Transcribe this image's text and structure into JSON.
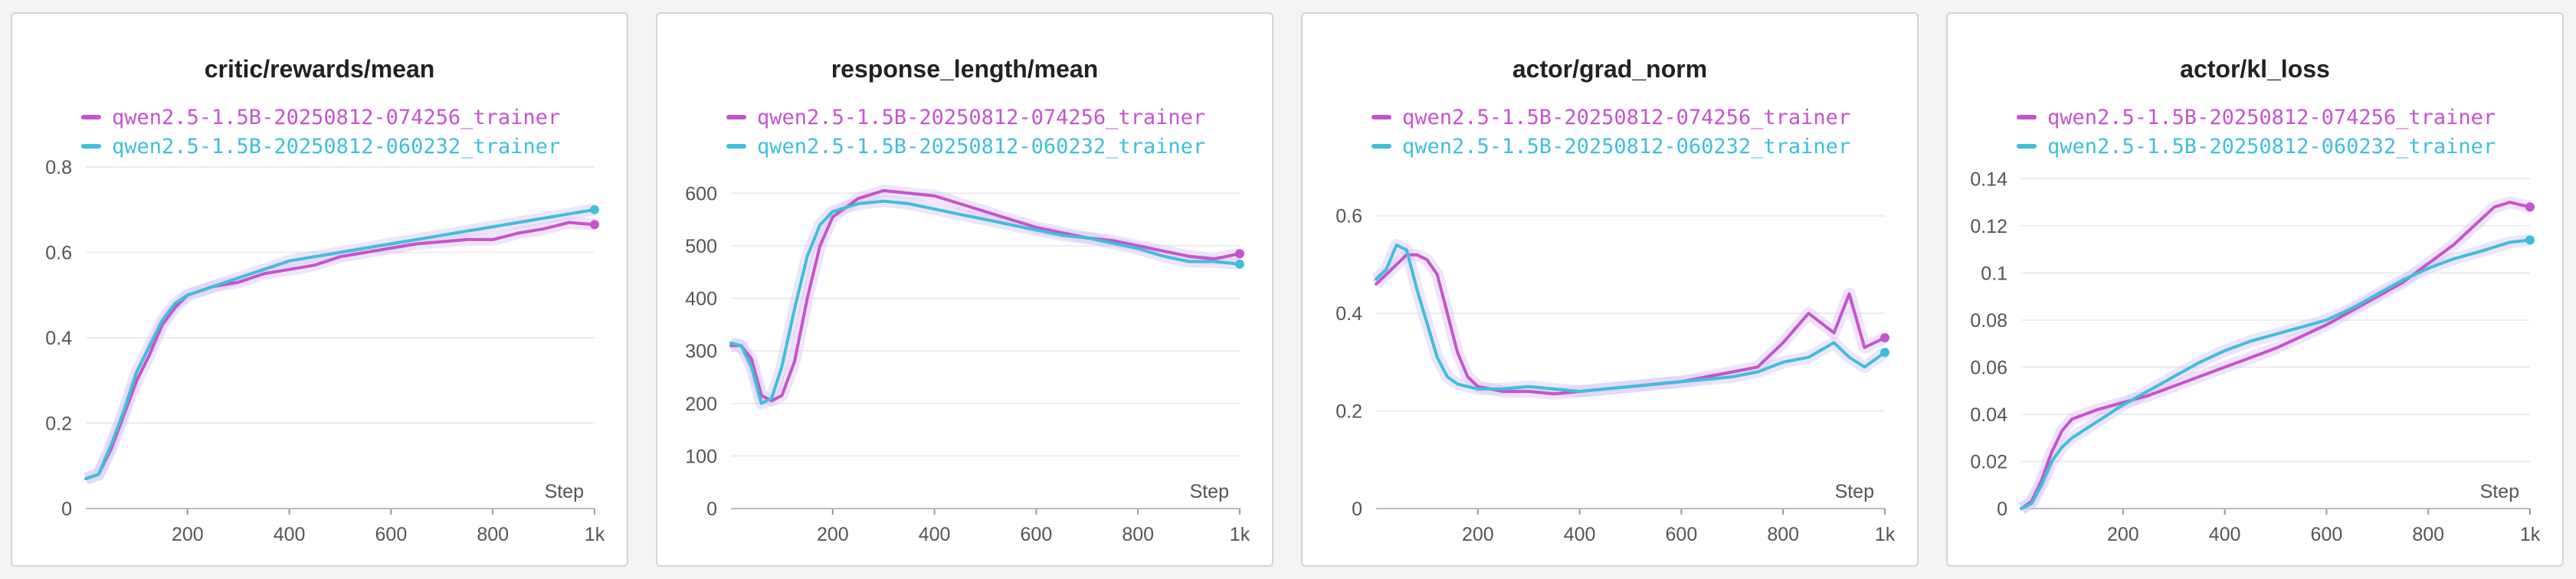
{
  "colors": {
    "magenta": "#c653cf",
    "cyan": "#3dbfdc",
    "grid": "#ececec",
    "shade": "#d9c6f2"
  },
  "series_names": [
    "qwen2.5-1.5B-20250812-074256_trainer",
    "qwen2.5-1.5B-20250812-060232_trainer"
  ],
  "chart_data": [
    {
      "type": "line",
      "title": "critic/rewards/mean",
      "xlabel": "Step",
      "xlim": [
        0,
        1000
      ],
      "ylim": [
        0,
        0.8
      ],
      "x_ticks": [
        200,
        400,
        600,
        800,
        1000
      ],
      "x_tick_labels": [
        "200",
        "400",
        "600",
        "800",
        "1k"
      ],
      "y_ticks": [
        0,
        0.2,
        0.4,
        0.6,
        0.8
      ],
      "y_tick_labels": [
        "0",
        "0.2",
        "0.4",
        "0.6",
        "0.8"
      ],
      "series": [
        {
          "name": "qwen2.5-1.5B-20250812-074256_trainer",
          "color": "#c653cf",
          "x": [
            0,
            25,
            50,
            75,
            100,
            125,
            150,
            175,
            200,
            250,
            300,
            350,
            400,
            450,
            500,
            550,
            600,
            650,
            700,
            750,
            800,
            850,
            900,
            950,
            1000
          ],
          "y": [
            0.07,
            0.08,
            0.14,
            0.22,
            0.3,
            0.36,
            0.43,
            0.47,
            0.5,
            0.52,
            0.53,
            0.55,
            0.56,
            0.57,
            0.59,
            0.6,
            0.61,
            0.62,
            0.625,
            0.63,
            0.63,
            0.645,
            0.655,
            0.67,
            0.665
          ]
        },
        {
          "name": "qwen2.5-1.5B-20250812-060232_trainer",
          "color": "#3dbfdc",
          "x": [
            0,
            25,
            50,
            75,
            100,
            125,
            150,
            175,
            200,
            250,
            300,
            350,
            400,
            450,
            500,
            550,
            600,
            650,
            700,
            750,
            800,
            850,
            900,
            950,
            1000
          ],
          "y": [
            0.07,
            0.08,
            0.15,
            0.23,
            0.32,
            0.38,
            0.44,
            0.48,
            0.5,
            0.52,
            0.54,
            0.56,
            0.58,
            0.59,
            0.6,
            0.61,
            0.62,
            0.63,
            0.64,
            0.65,
            0.66,
            0.67,
            0.68,
            0.69,
            0.7
          ]
        }
      ]
    },
    {
      "type": "line",
      "title": "response_length/mean",
      "xlabel": "Step",
      "xlim": [
        0,
        1000
      ],
      "ylim": [
        0,
        650
      ],
      "x_ticks": [
        200,
        400,
        600,
        800,
        1000
      ],
      "x_tick_labels": [
        "200",
        "400",
        "600",
        "800",
        "1k"
      ],
      "y_ticks": [
        0,
        100,
        200,
        300,
        400,
        500,
        600
      ],
      "y_tick_labels": [
        "0",
        "100",
        "200",
        "300",
        "400",
        "500",
        "600"
      ],
      "series": [
        {
          "name": "qwen2.5-1.5B-20250812-074256_trainer",
          "color": "#c653cf",
          "x": [
            0,
            20,
            40,
            60,
            80,
            100,
            125,
            150,
            175,
            200,
            250,
            300,
            350,
            400,
            450,
            500,
            550,
            600,
            650,
            700,
            750,
            800,
            850,
            900,
            950,
            1000
          ],
          "y": [
            310,
            310,
            285,
            215,
            205,
            215,
            280,
            400,
            500,
            555,
            590,
            605,
            600,
            595,
            580,
            565,
            550,
            535,
            525,
            515,
            510,
            500,
            490,
            480,
            475,
            485
          ]
        },
        {
          "name": "qwen2.5-1.5B-20250812-060232_trainer",
          "color": "#3dbfdc",
          "x": [
            0,
            20,
            40,
            60,
            80,
            100,
            125,
            150,
            175,
            200,
            250,
            300,
            350,
            400,
            450,
            500,
            550,
            600,
            650,
            700,
            750,
            800,
            850,
            900,
            950,
            1000
          ],
          "y": [
            315,
            310,
            270,
            200,
            210,
            270,
            380,
            480,
            540,
            565,
            580,
            585,
            580,
            570,
            560,
            550,
            540,
            530,
            520,
            515,
            505,
            495,
            480,
            470,
            470,
            465
          ]
        }
      ]
    },
    {
      "type": "line",
      "title": "actor/grad_norm",
      "xlabel": "Step",
      "xlim": [
        0,
        1000
      ],
      "ylim": [
        0,
        0.7
      ],
      "x_ticks": [
        200,
        400,
        600,
        800,
        1000
      ],
      "x_tick_labels": [
        "200",
        "400",
        "600",
        "800",
        "1k"
      ],
      "y_ticks": [
        0,
        0.2,
        0.4,
        0.6
      ],
      "y_tick_labels": [
        "0",
        "0.2",
        "0.4",
        "0.6"
      ],
      "series": [
        {
          "name": "qwen2.5-1.5B-20250812-074256_trainer",
          "color": "#c653cf",
          "x": [
            0,
            20,
            40,
            60,
            80,
            100,
            120,
            140,
            160,
            180,
            200,
            250,
            300,
            350,
            400,
            450,
            500,
            550,
            600,
            650,
            700,
            750,
            800,
            850,
            900,
            930,
            960,
            1000
          ],
          "y": [
            0.46,
            0.48,
            0.5,
            0.52,
            0.52,
            0.51,
            0.48,
            0.4,
            0.32,
            0.27,
            0.25,
            0.24,
            0.24,
            0.235,
            0.24,
            0.245,
            0.25,
            0.255,
            0.26,
            0.27,
            0.28,
            0.29,
            0.34,
            0.4,
            0.36,
            0.44,
            0.33,
            0.35
          ]
        },
        {
          "name": "qwen2.5-1.5B-20250812-060232_trainer",
          "color": "#3dbfdc",
          "x": [
            0,
            20,
            40,
            60,
            80,
            100,
            120,
            140,
            160,
            180,
            200,
            250,
            300,
            350,
            400,
            450,
            500,
            550,
            600,
            650,
            700,
            750,
            800,
            850,
            900,
            930,
            960,
            1000
          ],
          "y": [
            0.47,
            0.49,
            0.54,
            0.53,
            0.45,
            0.38,
            0.31,
            0.27,
            0.255,
            0.25,
            0.245,
            0.245,
            0.25,
            0.245,
            0.24,
            0.245,
            0.25,
            0.255,
            0.26,
            0.265,
            0.27,
            0.28,
            0.3,
            0.31,
            0.34,
            0.31,
            0.29,
            0.32
          ]
        }
      ]
    },
    {
      "type": "line",
      "title": "actor/kl_loss",
      "xlabel": "Step",
      "xlim": [
        0,
        1000
      ],
      "ylim": [
        0,
        0.145
      ],
      "x_ticks": [
        200,
        400,
        600,
        800,
        1000
      ],
      "x_tick_labels": [
        "200",
        "400",
        "600",
        "800",
        "1k"
      ],
      "y_ticks": [
        0,
        0.02,
        0.04,
        0.06,
        0.08,
        0.1,
        0.12,
        0.14
      ],
      "y_tick_labels": [
        "0",
        "0.02",
        "0.04",
        "0.06",
        "0.08",
        "0.1",
        "0.12",
        "0.14"
      ],
      "series": [
        {
          "name": "qwen2.5-1.5B-20250812-074256_trainer",
          "color": "#c653cf",
          "x": [
            0,
            20,
            40,
            60,
            80,
            100,
            150,
            200,
            250,
            300,
            350,
            400,
            450,
            500,
            550,
            600,
            650,
            700,
            750,
            800,
            850,
            900,
            930,
            960,
            1000
          ],
          "y": [
            0,
            0.003,
            0.012,
            0.024,
            0.033,
            0.038,
            0.042,
            0.045,
            0.048,
            0.052,
            0.056,
            0.06,
            0.064,
            0.068,
            0.073,
            0.078,
            0.084,
            0.09,
            0.096,
            0.104,
            0.112,
            0.122,
            0.128,
            0.13,
            0.128
          ]
        },
        {
          "name": "qwen2.5-1.5B-20250812-060232_trainer",
          "color": "#3dbfdc",
          "x": [
            0,
            20,
            40,
            60,
            80,
            100,
            150,
            200,
            250,
            300,
            350,
            400,
            450,
            500,
            550,
            600,
            650,
            700,
            750,
            800,
            850,
            900,
            930,
            960,
            1000
          ],
          "y": [
            0,
            0.002,
            0.01,
            0.02,
            0.026,
            0.03,
            0.037,
            0.044,
            0.05,
            0.056,
            0.062,
            0.067,
            0.071,
            0.074,
            0.077,
            0.08,
            0.085,
            0.091,
            0.097,
            0.102,
            0.106,
            0.109,
            0.111,
            0.113,
            0.114
          ]
        }
      ]
    }
  ]
}
